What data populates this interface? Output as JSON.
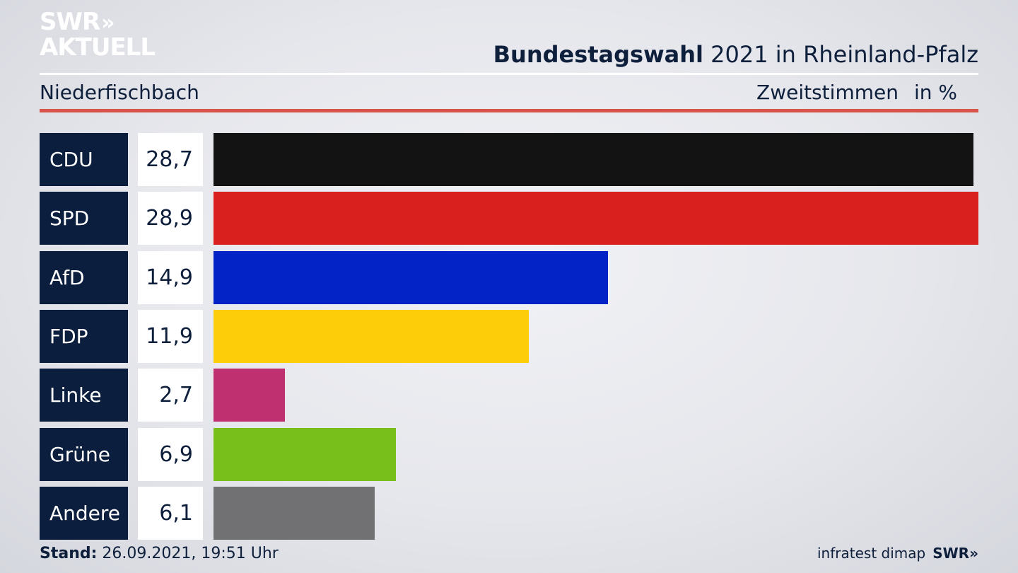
{
  "brand": {
    "logo_line1": "SWR",
    "logo_arrows": "»",
    "logo_line2": "AKTUELL"
  },
  "header": {
    "title_bold": "Bundestagswahl",
    "title_rest": " 2021 in Rheinland-Pfalz",
    "location": "Niederfischbach",
    "vote_type": "Zweitstimmen",
    "unit": "in %"
  },
  "footer": {
    "stand_label": "Stand:",
    "stand_value": " 26.09.2021, 19:51 Uhr",
    "source": "infratest dimap",
    "swr": "SWR»"
  },
  "chart_data": {
    "type": "bar",
    "orientation": "horizontal",
    "categories": [
      "CDU",
      "SPD",
      "AfD",
      "FDP",
      "Linke",
      "Grüne",
      "Andere"
    ],
    "values": [
      28.7,
      28.9,
      14.9,
      11.9,
      2.7,
      6.9,
      6.1
    ],
    "value_labels": [
      "28,7",
      "28,9",
      "14,9",
      "11,9",
      "2,7",
      "6,9",
      "6,1"
    ],
    "colors": [
      "#131313",
      "#d9201f",
      "#0423c7",
      "#fecd0a",
      "#bf3070",
      "#79bf1c",
      "#717173"
    ],
    "title": "Bundestagswahl 2021 in Rheinland-Pfalz",
    "ylabel": "in %",
    "xlim": [
      0,
      28.9
    ],
    "grid": false,
    "legend": "none"
  }
}
